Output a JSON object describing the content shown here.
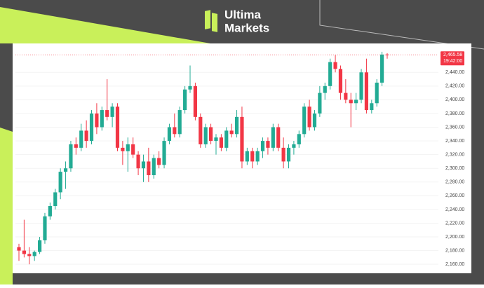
{
  "brand": {
    "line1": "Ultima",
    "line2": "Markets"
  },
  "chart_data": {
    "type": "candlestick",
    "up_color": "#22ab94",
    "down_color": "#f23645",
    "ylim": [
      2152,
      2474
    ],
    "yticks": [
      {
        "value": 2160,
        "label": "2,160.00"
      },
      {
        "value": 2180,
        "label": "2,180.00"
      },
      {
        "value": 2200,
        "label": "2,200.00"
      },
      {
        "value": 2220,
        "label": "2,220.00"
      },
      {
        "value": 2240,
        "label": "2,240.00"
      },
      {
        "value": 2260,
        "label": "2,260.00"
      },
      {
        "value": 2280,
        "label": "2,280.00"
      },
      {
        "value": 2300,
        "label": "2,300.00"
      },
      {
        "value": 2320,
        "label": "2,320.00"
      },
      {
        "value": 2340,
        "label": "2,340.00"
      },
      {
        "value": 2360,
        "label": "2,360.00"
      },
      {
        "value": 2380,
        "label": "2,380.00"
      },
      {
        "value": 2400,
        "label": "2,400.00"
      },
      {
        "value": 2420,
        "label": "2,420.00"
      },
      {
        "value": 2440,
        "label": "2,440.00"
      }
    ],
    "price_label": {
      "value": 2465.58,
      "label": "2,465.58"
    },
    "time_label": "19:42:00",
    "candles": [
      {
        "open": 2185,
        "high": 2190,
        "low": 2165,
        "close": 2180
      },
      {
        "open": 2180,
        "high": 2225,
        "low": 2170,
        "close": 2175
      },
      {
        "open": 2175,
        "high": 2185,
        "low": 2160,
        "close": 2172
      },
      {
        "open": 2172,
        "high": 2180,
        "low": 2165,
        "close": 2178
      },
      {
        "open": 2178,
        "high": 2200,
        "low": 2175,
        "close": 2195
      },
      {
        "open": 2195,
        "high": 2235,
        "low": 2190,
        "close": 2230
      },
      {
        "open": 2230,
        "high": 2250,
        "low": 2225,
        "close": 2245
      },
      {
        "open": 2245,
        "high": 2270,
        "low": 2240,
        "close": 2265
      },
      {
        "open": 2265,
        "high": 2300,
        "low": 2255,
        "close": 2295
      },
      {
        "open": 2295,
        "high": 2310,
        "low": 2270,
        "close": 2300
      },
      {
        "open": 2300,
        "high": 2340,
        "low": 2295,
        "close": 2335
      },
      {
        "open": 2335,
        "high": 2345,
        "low": 2320,
        "close": 2330
      },
      {
        "open": 2330,
        "high": 2365,
        "low": 2325,
        "close": 2355
      },
      {
        "open": 2355,
        "high": 2370,
        "low": 2330,
        "close": 2340
      },
      {
        "open": 2340,
        "high": 2385,
        "low": 2335,
        "close": 2380
      },
      {
        "open": 2380,
        "high": 2395,
        "low": 2350,
        "close": 2360
      },
      {
        "open": 2360,
        "high": 2390,
        "low": 2355,
        "close": 2385
      },
      {
        "open": 2385,
        "high": 2430,
        "low": 2370,
        "close": 2375
      },
      {
        "open": 2375,
        "high": 2395,
        "low": 2360,
        "close": 2390
      },
      {
        "open": 2390,
        "high": 2395,
        "low": 2325,
        "close": 2330
      },
      {
        "open": 2330,
        "high": 2340,
        "low": 2305,
        "close": 2325
      },
      {
        "open": 2325,
        "high": 2345,
        "low": 2295,
        "close": 2335
      },
      {
        "open": 2335,
        "high": 2345,
        "low": 2315,
        "close": 2320
      },
      {
        "open": 2320,
        "high": 2325,
        "low": 2290,
        "close": 2300
      },
      {
        "open": 2300,
        "high": 2320,
        "low": 2280,
        "close": 2310
      },
      {
        "open": 2310,
        "high": 2330,
        "low": 2280,
        "close": 2290
      },
      {
        "open": 2290,
        "high": 2320,
        "low": 2285,
        "close": 2315
      },
      {
        "open": 2315,
        "high": 2325,
        "low": 2300,
        "close": 2305
      },
      {
        "open": 2305,
        "high": 2345,
        "low": 2300,
        "close": 2340
      },
      {
        "open": 2340,
        "high": 2365,
        "low": 2335,
        "close": 2360
      },
      {
        "open": 2360,
        "high": 2380,
        "low": 2345,
        "close": 2350
      },
      {
        "open": 2350,
        "high": 2390,
        "low": 2345,
        "close": 2385
      },
      {
        "open": 2385,
        "high": 2420,
        "low": 2380,
        "close": 2415
      },
      {
        "open": 2415,
        "high": 2450,
        "low": 2410,
        "close": 2420
      },
      {
        "open": 2420,
        "high": 2425,
        "low": 2370,
        "close": 2375
      },
      {
        "open": 2375,
        "high": 2380,
        "low": 2330,
        "close": 2335
      },
      {
        "open": 2335,
        "high": 2365,
        "low": 2330,
        "close": 2360
      },
      {
        "open": 2360,
        "high": 2365,
        "low": 2335,
        "close": 2340
      },
      {
        "open": 2340,
        "high": 2350,
        "low": 2320,
        "close": 2345
      },
      {
        "open": 2345,
        "high": 2350,
        "low": 2325,
        "close": 2330
      },
      {
        "open": 2330,
        "high": 2360,
        "low": 2325,
        "close": 2355
      },
      {
        "open": 2355,
        "high": 2365,
        "low": 2345,
        "close": 2350
      },
      {
        "open": 2350,
        "high": 2385,
        "low": 2345,
        "close": 2375
      },
      {
        "open": 2375,
        "high": 2390,
        "low": 2300,
        "close": 2310
      },
      {
        "open": 2310,
        "high": 2330,
        "low": 2305,
        "close": 2325
      },
      {
        "open": 2325,
        "high": 2330,
        "low": 2300,
        "close": 2310
      },
      {
        "open": 2310,
        "high": 2330,
        "low": 2305,
        "close": 2325
      },
      {
        "open": 2325,
        "high": 2345,
        "low": 2315,
        "close": 2340
      },
      {
        "open": 2340,
        "high": 2345,
        "low": 2320,
        "close": 2330
      },
      {
        "open": 2330,
        "high": 2365,
        "low": 2325,
        "close": 2360
      },
      {
        "open": 2360,
        "high": 2365,
        "low": 2325,
        "close": 2330
      },
      {
        "open": 2330,
        "high": 2345,
        "low": 2300,
        "close": 2310
      },
      {
        "open": 2310,
        "high": 2335,
        "low": 2300,
        "close": 2330
      },
      {
        "open": 2330,
        "high": 2340,
        "low": 2320,
        "close": 2335
      },
      {
        "open": 2335,
        "high": 2355,
        "low": 2330,
        "close": 2350
      },
      {
        "open": 2350,
        "high": 2395,
        "low": 2345,
        "close": 2390
      },
      {
        "open": 2390,
        "high": 2400,
        "low": 2355,
        "close": 2360
      },
      {
        "open": 2360,
        "high": 2385,
        "low": 2355,
        "close": 2380
      },
      {
        "open": 2380,
        "high": 2420,
        "low": 2375,
        "close": 2410
      },
      {
        "open": 2410,
        "high": 2425,
        "low": 2400,
        "close": 2420
      },
      {
        "open": 2420,
        "high": 2460,
        "low": 2415,
        "close": 2455
      },
      {
        "open": 2455,
        "high": 2465,
        "low": 2440,
        "close": 2445
      },
      {
        "open": 2445,
        "high": 2450,
        "low": 2400,
        "close": 2410
      },
      {
        "open": 2410,
        "high": 2430,
        "low": 2395,
        "close": 2400
      },
      {
        "open": 2400,
        "high": 2410,
        "low": 2360,
        "close": 2395
      },
      {
        "open": 2395,
        "high": 2410,
        "low": 2385,
        "close": 2400
      },
      {
        "open": 2400,
        "high": 2445,
        "low": 2395,
        "close": 2440
      },
      {
        "open": 2440,
        "high": 2460,
        "low": 2380,
        "close": 2385
      },
      {
        "open": 2385,
        "high": 2400,
        "low": 2380,
        "close": 2395
      },
      {
        "open": 2395,
        "high": 2430,
        "low": 2390,
        "close": 2425
      },
      {
        "open": 2425,
        "high": 2470,
        "low": 2420,
        "close": 2466
      },
      {
        "open": 2466,
        "high": 2468,
        "low": 2460,
        "close": 2465.58
      }
    ]
  }
}
